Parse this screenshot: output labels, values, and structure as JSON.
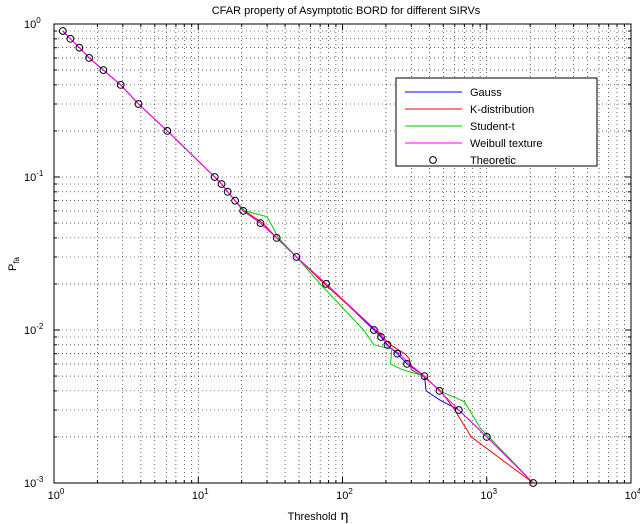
{
  "chart_data": {
    "type": "line",
    "title": "CFAR property of Asymptotic BORD for different SIRVs",
    "xlabel": "Threshold",
    "xlabel_symbol": "η",
    "ylabel": "P",
    "ylabel_sub": "fa",
    "xscale": "log",
    "yscale": "log",
    "xlim": [
      1,
      10000
    ],
    "ylim": [
      0.001,
      1
    ],
    "grid": true,
    "legend_position": "upper-right",
    "x_ticks": [
      {
        "value": 1,
        "base": "10",
        "exp": "0"
      },
      {
        "value": 10,
        "base": "10",
        "exp": "1"
      },
      {
        "value": 100,
        "base": "10",
        "exp": "2"
      },
      {
        "value": 1000,
        "base": "10",
        "exp": "3"
      },
      {
        "value": 10000,
        "base": "10",
        "exp": "4"
      }
    ],
    "y_ticks": [
      {
        "value": 0.001,
        "base": "10",
        "exp": "-3"
      },
      {
        "value": 0.01,
        "base": "10",
        "exp": "-2"
      },
      {
        "value": 0.1,
        "base": "10",
        "exp": "-1"
      },
      {
        "value": 1,
        "base": "10",
        "exp": "0"
      }
    ],
    "series": [
      {
        "name": "Gauss",
        "color": "#0000ff",
        "style": "line",
        "points": [
          [
            1.15,
            0.9
          ],
          [
            1.3,
            0.8
          ],
          [
            1.5,
            0.7
          ],
          [
            1.75,
            0.6
          ],
          [
            2.2,
            0.5
          ],
          [
            2.9,
            0.4
          ],
          [
            3.85,
            0.3
          ],
          [
            6.1,
            0.2
          ],
          [
            13,
            0.1
          ],
          [
            14.5,
            0.09
          ],
          [
            16,
            0.08
          ],
          [
            18,
            0.07
          ],
          [
            20.5,
            0.06
          ],
          [
            27,
            0.05
          ],
          [
            35,
            0.04
          ],
          [
            48,
            0.03
          ],
          [
            77,
            0.02
          ],
          [
            165,
            0.01
          ],
          [
            185,
            0.009
          ],
          [
            205,
            0.008
          ],
          [
            240,
            0.007
          ],
          [
            280,
            0.006
          ],
          [
            370,
            0.005
          ],
          [
            380,
            0.004
          ],
          [
            470,
            0.0035
          ],
          [
            640,
            0.003
          ],
          [
            1000,
            0.002
          ],
          [
            2100,
            0.001
          ]
        ]
      },
      {
        "name": "K-distribution",
        "color": "#ff0000",
        "style": "line",
        "points": [
          [
            1.15,
            0.9
          ],
          [
            1.3,
            0.8
          ],
          [
            1.5,
            0.7
          ],
          [
            1.75,
            0.6
          ],
          [
            2.2,
            0.5
          ],
          [
            2.9,
            0.4
          ],
          [
            3.85,
            0.3
          ],
          [
            6.1,
            0.2
          ],
          [
            13,
            0.1
          ],
          [
            14.5,
            0.09
          ],
          [
            16,
            0.08
          ],
          [
            18,
            0.07
          ],
          [
            21,
            0.06
          ],
          [
            28,
            0.05
          ],
          [
            35,
            0.04
          ],
          [
            48,
            0.03
          ],
          [
            75,
            0.02
          ],
          [
            170,
            0.01
          ],
          [
            190,
            0.009
          ],
          [
            215,
            0.008
          ],
          [
            270,
            0.007
          ],
          [
            290,
            0.0065
          ],
          [
            300,
            0.0055
          ],
          [
            360,
            0.005
          ],
          [
            480,
            0.004
          ],
          [
            600,
            0.003
          ],
          [
            780,
            0.002
          ],
          [
            2100,
            0.001
          ]
        ]
      },
      {
        "name": "Student-t",
        "color": "#00cc00",
        "style": "line",
        "points": [
          [
            1.15,
            0.9
          ],
          [
            1.3,
            0.8
          ],
          [
            1.5,
            0.7
          ],
          [
            1.75,
            0.6
          ],
          [
            2.2,
            0.5
          ],
          [
            2.9,
            0.4
          ],
          [
            3.85,
            0.3
          ],
          [
            6.1,
            0.2
          ],
          [
            13,
            0.1
          ],
          [
            14.5,
            0.09
          ],
          [
            16,
            0.08
          ],
          [
            18,
            0.07
          ],
          [
            21,
            0.06
          ],
          [
            30,
            0.055
          ],
          [
            36,
            0.04
          ],
          [
            48,
            0.03
          ],
          [
            70,
            0.02
          ],
          [
            140,
            0.01
          ],
          [
            165,
            0.008
          ],
          [
            220,
            0.0075
          ],
          [
            215,
            0.006
          ],
          [
            260,
            0.0055
          ],
          [
            370,
            0.005
          ],
          [
            470,
            0.004
          ],
          [
            700,
            0.0034
          ],
          [
            900,
            0.0023
          ],
          [
            2100,
            0.001
          ]
        ]
      },
      {
        "name": "Weibull texture",
        "color": "#ff00ff",
        "style": "line",
        "points": [
          [
            1.15,
            0.9
          ],
          [
            1.3,
            0.8
          ],
          [
            1.5,
            0.7
          ],
          [
            1.75,
            0.6
          ],
          [
            2.2,
            0.5
          ],
          [
            2.9,
            0.4
          ],
          [
            3.85,
            0.3
          ],
          [
            6.1,
            0.2
          ],
          [
            13,
            0.1
          ],
          [
            14.5,
            0.09
          ],
          [
            16,
            0.08
          ],
          [
            18,
            0.07
          ],
          [
            20.5,
            0.06
          ],
          [
            27,
            0.05
          ],
          [
            35,
            0.04
          ],
          [
            48,
            0.03
          ],
          [
            77,
            0.02
          ],
          [
            170,
            0.01
          ],
          [
            185,
            0.0095
          ],
          [
            200,
            0.008
          ],
          [
            250,
            0.007
          ],
          [
            290,
            0.006
          ],
          [
            370,
            0.005
          ],
          [
            470,
            0.004
          ],
          [
            640,
            0.003
          ],
          [
            1000,
            0.002
          ],
          [
            2100,
            0.001
          ]
        ]
      },
      {
        "name": "Theoretic",
        "color": "#000000",
        "style": "marker",
        "points": [
          [
            1.15,
            0.9
          ],
          [
            1.3,
            0.8
          ],
          [
            1.5,
            0.7
          ],
          [
            1.75,
            0.6
          ],
          [
            2.2,
            0.5
          ],
          [
            2.9,
            0.4
          ],
          [
            3.85,
            0.3
          ],
          [
            6.1,
            0.2
          ],
          [
            13,
            0.1
          ],
          [
            14.5,
            0.09
          ],
          [
            16,
            0.08
          ],
          [
            18,
            0.07
          ],
          [
            20.5,
            0.06
          ],
          [
            27,
            0.05
          ],
          [
            35,
            0.04
          ],
          [
            48,
            0.03
          ],
          [
            77,
            0.02
          ],
          [
            165,
            0.01
          ],
          [
            185,
            0.009
          ],
          [
            205,
            0.008
          ],
          [
            240,
            0.007
          ],
          [
            280,
            0.006
          ],
          [
            370,
            0.005
          ],
          [
            470,
            0.004
          ],
          [
            640,
            0.003
          ],
          [
            1000,
            0.002
          ],
          [
            2100,
            0.001
          ]
        ]
      }
    ]
  }
}
